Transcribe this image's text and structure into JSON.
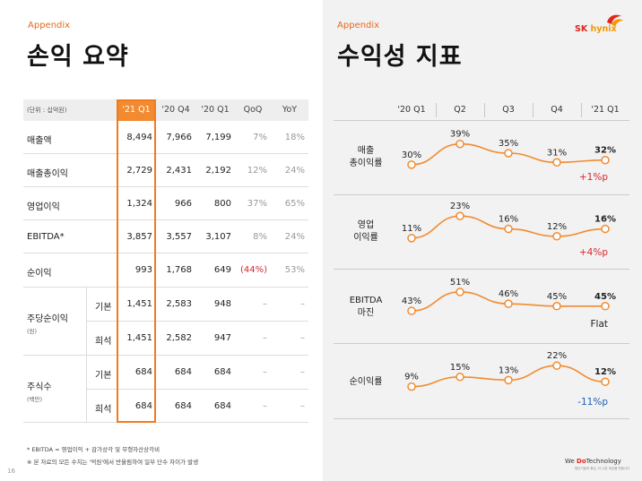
{
  "left": {
    "appendix": "Appendix",
    "title": "손익 요약",
    "unit": "(단위 : 십억원)",
    "columns": [
      "'21 Q1",
      "'20 Q4",
      "'20 Q1",
      "QoQ",
      "YoY"
    ],
    "rows": [
      {
        "label": "매출액",
        "values": [
          "8,494",
          "7,966",
          "7,199",
          "7%",
          "18%"
        ]
      },
      {
        "label": "매출총이익",
        "values": [
          "2,729",
          "2,431",
          "2,192",
          "12%",
          "24%"
        ]
      },
      {
        "label": "영업이익",
        "values": [
          "1,324",
          "966",
          "800",
          "37%",
          "65%"
        ]
      },
      {
        "label": "EBITDA*",
        "values": [
          "3,857",
          "3,557",
          "3,107",
          "8%",
          "24%"
        ]
      },
      {
        "label": "순이익",
        "values": [
          "993",
          "1,768",
          "649",
          "(44%)",
          "53%"
        ]
      }
    ],
    "eps": {
      "label": "주당순이익",
      "sub": "(원)",
      "rows": [
        {
          "label": "기본",
          "values": [
            "1,451",
            "2,583",
            "948",
            "–",
            "–"
          ]
        },
        {
          "label": "희석",
          "values": [
            "1,451",
            "2,582",
            "947",
            "–",
            "–"
          ]
        }
      ]
    },
    "shares": {
      "label": "주식수",
      "sub": "(백만)",
      "rows": [
        {
          "label": "기본",
          "values": [
            "684",
            "684",
            "684",
            "–",
            "–"
          ]
        },
        {
          "label": "희석",
          "values": [
            "684",
            "684",
            "684",
            "–",
            "–"
          ]
        }
      ]
    },
    "footnotes": [
      "* EBITDA = 영업이익 + 감가상각 및 무형자산상각비",
      "※ 본 자료의 모든 수치는 '억원'에서 반올림하여 일부 단수 차이가 발생"
    ],
    "page_number": "16"
  },
  "right": {
    "appendix": "Appendix",
    "title": "수익성 지표",
    "logo_sk": "SK",
    "logo_hynix": "hynix",
    "columns": [
      "'20 Q1",
      "Q2",
      "Q3",
      "Q4",
      "'21 Q1"
    ],
    "metrics": [
      {
        "label_line1": "매출",
        "label_line2": "총이익률",
        "values": [
          30,
          39,
          35,
          31,
          32
        ],
        "labels": [
          "30%",
          "39%",
          "35%",
          "31%",
          "32%"
        ],
        "change": "+1%p",
        "change_color": "#d8262e"
      },
      {
        "label_line1": "영업",
        "label_line2": "이익률",
        "values": [
          11,
          23,
          16,
          12,
          16
        ],
        "labels": [
          "11%",
          "23%",
          "16%",
          "12%",
          "16%"
        ],
        "change": "+4%p",
        "change_color": "#d8262e"
      },
      {
        "label_line1": "EBITDA",
        "label_line2": "마진",
        "values": [
          43,
          51,
          46,
          45,
          45
        ],
        "labels": [
          "43%",
          "51%",
          "46%",
          "45%",
          "45%"
        ],
        "change": "Flat",
        "change_color": "#222222"
      },
      {
        "label_line1": "순이익률",
        "label_line2": "",
        "values": [
          9,
          15,
          13,
          22,
          12
        ],
        "labels": [
          "9%",
          "15%",
          "13%",
          "22%",
          "12%"
        ],
        "change": "-11%p",
        "change_color": "#1a5fb4"
      }
    ],
    "tagline_prefix": "We ",
    "tagline_accent": "Do",
    "tagline_suffix": "Technology",
    "tagline_sub": "첨단기술의 중심, 더 나은 세상을 만듭니다"
  },
  "chart_data": {
    "type": "line",
    "categories": [
      "'20 Q1",
      "Q2",
      "Q3",
      "Q4",
      "'21 Q1"
    ],
    "series": [
      {
        "name": "매출 총이익률",
        "values": [
          30,
          39,
          35,
          31,
          32
        ]
      },
      {
        "name": "영업 이익률",
        "values": [
          11,
          23,
          16,
          12,
          16
        ]
      },
      {
        "name": "EBITDA 마진",
        "values": [
          43,
          51,
          46,
          45,
          45
        ]
      },
      {
        "name": "순이익률",
        "values": [
          9,
          15,
          13,
          22,
          12
        ]
      }
    ],
    "line_color": "#f28b2f"
  }
}
